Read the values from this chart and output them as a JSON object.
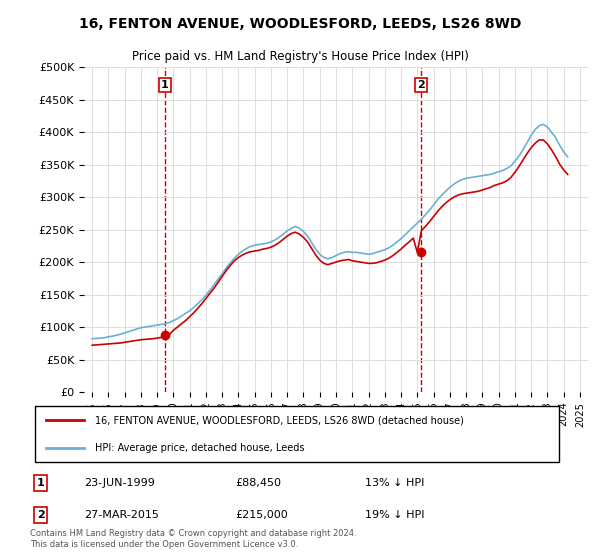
{
  "title": "16, FENTON AVENUE, WOODLESFORD, LEEDS, LS26 8WD",
  "subtitle": "Price paid vs. HM Land Registry's House Price Index (HPI)",
  "legend_line1": "16, FENTON AVENUE, WOODLESFORD, LEEDS, LS26 8WD (detached house)",
  "legend_line2": "HPI: Average price, detached house, Leeds",
  "footnote": "Contains HM Land Registry data © Crown copyright and database right 2024.\nThis data is licensed under the Open Government Licence v3.0.",
  "sale1_label": "1",
  "sale1_date": "23-JUN-1999",
  "sale1_price": "£88,450",
  "sale1_hpi": "13% ↓ HPI",
  "sale2_label": "2",
  "sale2_date": "27-MAR-2015",
  "sale2_price": "£215,000",
  "sale2_hpi": "19% ↓ HPI",
  "sale1_x": 1999.47,
  "sale1_y": 88450,
  "sale2_x": 2015.23,
  "sale2_y": 215000,
  "hpi_color": "#6ab0d4",
  "price_color": "#cc0000",
  "marker_color": "#cc0000",
  "dashed_color": "#cc0000",
  "ylim_min": 0,
  "ylim_max": 500000,
  "yticks": [
    0,
    50000,
    100000,
    150000,
    200000,
    250000,
    300000,
    350000,
    400000,
    450000,
    500000
  ],
  "xlim_min": 1994.5,
  "xlim_max": 2025.5,
  "background_color": "#ffffff",
  "grid_color": "#dddddd",
  "hpi_data_x": [
    1995.0,
    1995.25,
    1995.5,
    1995.75,
    1996.0,
    1996.25,
    1996.5,
    1996.75,
    1997.0,
    1997.25,
    1997.5,
    1997.75,
    1998.0,
    1998.25,
    1998.5,
    1998.75,
    1999.0,
    1999.25,
    1999.5,
    1999.75,
    2000.0,
    2000.25,
    2000.5,
    2000.75,
    2001.0,
    2001.25,
    2001.5,
    2001.75,
    2002.0,
    2002.25,
    2002.5,
    2002.75,
    2003.0,
    2003.25,
    2003.5,
    2003.75,
    2004.0,
    2004.25,
    2004.5,
    2004.75,
    2005.0,
    2005.25,
    2005.5,
    2005.75,
    2006.0,
    2006.25,
    2006.5,
    2006.75,
    2007.0,
    2007.25,
    2007.5,
    2007.75,
    2008.0,
    2008.25,
    2008.5,
    2008.75,
    2009.0,
    2009.25,
    2009.5,
    2009.75,
    2010.0,
    2010.25,
    2010.5,
    2010.75,
    2011.0,
    2011.25,
    2011.5,
    2011.75,
    2012.0,
    2012.25,
    2012.5,
    2012.75,
    2013.0,
    2013.25,
    2013.5,
    2013.75,
    2014.0,
    2014.25,
    2014.5,
    2014.75,
    2015.0,
    2015.25,
    2015.5,
    2015.75,
    2016.0,
    2016.25,
    2016.5,
    2016.75,
    2017.0,
    2017.25,
    2017.5,
    2017.75,
    2018.0,
    2018.25,
    2018.5,
    2018.75,
    2019.0,
    2019.25,
    2019.5,
    2019.75,
    2020.0,
    2020.25,
    2020.5,
    2020.75,
    2021.0,
    2021.25,
    2021.5,
    2021.75,
    2022.0,
    2022.25,
    2022.5,
    2022.75,
    2023.0,
    2023.25,
    2023.5,
    2023.75,
    2024.0,
    2024.25
  ],
  "hpi_data_y": [
    82000,
    82500,
    83000,
    83500,
    85000,
    86000,
    87500,
    89000,
    91000,
    93000,
    95000,
    97000,
    99000,
    100000,
    101000,
    102000,
    103000,
    104000,
    105000,
    107000,
    110000,
    113000,
    117000,
    121000,
    125000,
    130000,
    136000,
    142000,
    149000,
    157000,
    165000,
    174000,
    182000,
    191000,
    199000,
    206000,
    212000,
    217000,
    221000,
    224000,
    226000,
    227000,
    228000,
    229000,
    231000,
    234000,
    238000,
    243000,
    248000,
    252000,
    255000,
    252000,
    247000,
    240000,
    230000,
    220000,
    212000,
    207000,
    205000,
    207000,
    210000,
    213000,
    215000,
    216000,
    215000,
    215000,
    214000,
    213000,
    212000,
    213000,
    215000,
    217000,
    219000,
    222000,
    226000,
    231000,
    236000,
    242000,
    248000,
    254000,
    260000,
    266000,
    273000,
    280000,
    288000,
    296000,
    303000,
    309000,
    315000,
    320000,
    324000,
    327000,
    329000,
    330000,
    331000,
    332000,
    333000,
    334000,
    335000,
    337000,
    339000,
    341000,
    344000,
    348000,
    355000,
    363000,
    373000,
    384000,
    395000,
    404000,
    410000,
    412000,
    408000,
    400000,
    392000,
    380000,
    370000,
    362000
  ],
  "price_data_x": [
    1995.0,
    1995.25,
    1995.5,
    1995.75,
    1996.0,
    1996.25,
    1996.5,
    1996.75,
    1997.0,
    1997.25,
    1997.5,
    1997.75,
    1998.0,
    1998.25,
    1998.5,
    1998.75,
    1999.0,
    1999.25,
    1999.5,
    1999.75,
    2000.0,
    2000.25,
    2000.5,
    2000.75,
    2001.0,
    2001.25,
    2001.5,
    2001.75,
    2002.0,
    2002.25,
    2002.5,
    2002.75,
    2003.0,
    2003.25,
    2003.5,
    2003.75,
    2004.0,
    2004.25,
    2004.5,
    2004.75,
    2005.0,
    2005.25,
    2005.5,
    2005.75,
    2006.0,
    2006.25,
    2006.5,
    2006.75,
    2007.0,
    2007.25,
    2007.5,
    2007.75,
    2008.0,
    2008.25,
    2008.5,
    2008.75,
    2009.0,
    2009.25,
    2009.5,
    2009.75,
    2010.0,
    2010.25,
    2010.5,
    2010.75,
    2011.0,
    2011.25,
    2011.5,
    2011.75,
    2012.0,
    2012.25,
    2012.5,
    2012.75,
    2013.0,
    2013.25,
    2013.5,
    2013.75,
    2014.0,
    2014.25,
    2014.5,
    2014.75,
    2015.0,
    2015.25,
    2015.5,
    2015.75,
    2016.0,
    2016.25,
    2016.5,
    2016.75,
    2017.0,
    2017.25,
    2017.5,
    2017.75,
    2018.0,
    2018.25,
    2018.5,
    2018.75,
    2019.0,
    2019.25,
    2019.5,
    2019.75,
    2020.0,
    2020.25,
    2020.5,
    2020.75,
    2021.0,
    2021.25,
    2021.5,
    2021.75,
    2022.0,
    2022.25,
    2022.5,
    2022.75,
    2023.0,
    2023.25,
    2023.5,
    2023.75,
    2024.0,
    2024.25
  ],
  "price_data_y": [
    72000,
    72500,
    73000,
    73500,
    74000,
    74500,
    75000,
    75500,
    76500,
    77500,
    78500,
    79500,
    80500,
    81000,
    81500,
    82000,
    83000,
    84000,
    85000,
    88450,
    95000,
    100000,
    105000,
    110000,
    116000,
    122000,
    129000,
    136000,
    144000,
    152000,
    160000,
    169000,
    178000,
    187000,
    195000,
    202000,
    207000,
    211000,
    214000,
    216000,
    217000,
    218000,
    220000,
    221000,
    223000,
    226000,
    230000,
    235000,
    240000,
    244000,
    246000,
    243000,
    238000,
    231000,
    221000,
    211000,
    203000,
    198000,
    196000,
    198000,
    200000,
    202000,
    203000,
    204000,
    202000,
    201000,
    200000,
    199000,
    198000,
    198000,
    199000,
    201000,
    203000,
    206000,
    210000,
    215000,
    220000,
    226000,
    231000,
    237000,
    215000,
    248000,
    255000,
    262000,
    270000,
    278000,
    285000,
    291000,
    296000,
    300000,
    303000,
    305000,
    306000,
    307000,
    308000,
    309000,
    311000,
    313000,
    315000,
    318000,
    320000,
    322000,
    325000,
    330000,
    338000,
    347000,
    357000,
    367000,
    376000,
    383000,
    388000,
    388000,
    382000,
    373000,
    363000,
    351000,
    342000,
    335000
  ]
}
